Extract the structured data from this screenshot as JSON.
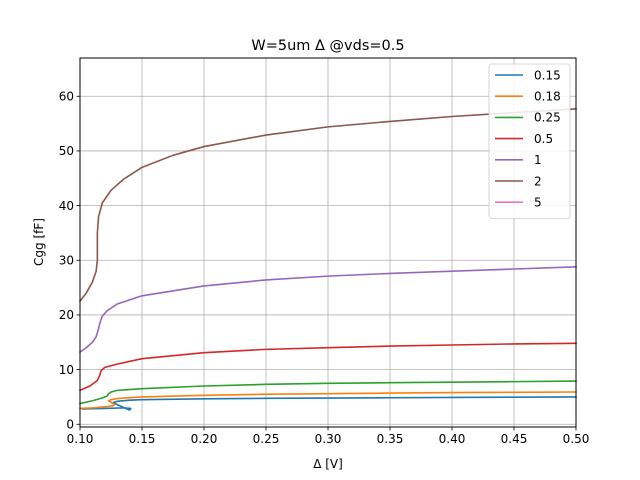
{
  "chart_data": {
    "type": "line",
    "title": "W=5um Δ @vds=0.5",
    "xlabel": "Δ [V]",
    "ylabel": "Cgg [fF]",
    "xlim": [
      0.1,
      0.5
    ],
    "ylim": [
      -0.5,
      67
    ],
    "x_ticks": [
      0.1,
      0.15,
      0.2,
      0.25,
      0.3,
      0.35,
      0.4,
      0.45,
      0.5
    ],
    "x_tick_labels": [
      "0.10",
      "0.15",
      "0.20",
      "0.25",
      "0.30",
      "0.35",
      "0.40",
      "0.45",
      "0.50"
    ],
    "y_ticks": [
      0,
      10,
      20,
      30,
      40,
      50,
      60
    ],
    "y_tick_labels": [
      "0",
      "10",
      "20",
      "30",
      "40",
      "50",
      "60"
    ],
    "grid": true,
    "legend_position": "top-right",
    "series": [
      {
        "name": "0.15",
        "color": "#1f77b4",
        "x": [
          0.102,
          0.12,
          0.135,
          0.141,
          0.14,
          0.13,
          0.127,
          0.13,
          0.14,
          0.15,
          0.2,
          0.25,
          0.3,
          0.35,
          0.4,
          0.45,
          0.5
        ],
        "y": [
          2.8,
          2.9,
          3.0,
          2.9,
          2.6,
          3.6,
          4.0,
          4.2,
          4.4,
          4.5,
          4.65,
          4.75,
          4.8,
          4.85,
          4.9,
          4.95,
          5.0
        ]
      },
      {
        "name": "0.18",
        "color": "#ff7f0e",
        "x": [
          0.1,
          0.11,
          0.12,
          0.127,
          0.128,
          0.123,
          0.125,
          0.13,
          0.15,
          0.2,
          0.25,
          0.3,
          0.35,
          0.4,
          0.45,
          0.5
        ],
        "y": [
          2.9,
          3.0,
          3.2,
          3.4,
          3.6,
          4.3,
          4.5,
          4.7,
          5.0,
          5.3,
          5.5,
          5.6,
          5.7,
          5.8,
          5.85,
          5.9
        ]
      },
      {
        "name": "0.25",
        "color": "#2ca02c",
        "x": [
          0.1,
          0.11,
          0.118,
          0.122,
          0.123,
          0.125,
          0.13,
          0.15,
          0.2,
          0.25,
          0.3,
          0.35,
          0.4,
          0.45,
          0.5
        ],
        "y": [
          3.8,
          4.3,
          4.8,
          5.2,
          5.6,
          5.9,
          6.2,
          6.5,
          7.0,
          7.3,
          7.5,
          7.6,
          7.7,
          7.8,
          7.9
        ]
      },
      {
        "name": "0.5",
        "color": "#d62728",
        "x": [
          0.1,
          0.108,
          0.114,
          0.116,
          0.117,
          0.12,
          0.13,
          0.15,
          0.2,
          0.25,
          0.3,
          0.35,
          0.4,
          0.45,
          0.5
        ],
        "y": [
          6.2,
          7.0,
          8.0,
          9.0,
          9.8,
          10.4,
          11.0,
          12.0,
          13.1,
          13.7,
          14.0,
          14.3,
          14.5,
          14.7,
          14.8
        ]
      },
      {
        "name": "1",
        "color": "#9467bd",
        "x": [
          0.1,
          0.105,
          0.11,
          0.113,
          0.115,
          0.116,
          0.118,
          0.122,
          0.13,
          0.15,
          0.2,
          0.25,
          0.3,
          0.35,
          0.4,
          0.45,
          0.5
        ],
        "y": [
          13.2,
          14.0,
          15.0,
          16.0,
          17.5,
          18.5,
          19.8,
          20.8,
          22.0,
          23.5,
          25.3,
          26.4,
          27.1,
          27.6,
          28.0,
          28.4,
          28.8
        ]
      },
      {
        "name": "2",
        "color": "#8c564b",
        "x": [
          0.1,
          0.105,
          0.11,
          0.113,
          0.114,
          0.114,
          0.115,
          0.118,
          0.125,
          0.135,
          0.15,
          0.175,
          0.2,
          0.25,
          0.3,
          0.35,
          0.4,
          0.45,
          0.5
        ],
        "y": [
          22.5,
          24.0,
          26.0,
          28.0,
          30.0,
          35.0,
          38.0,
          40.5,
          42.8,
          44.8,
          47.0,
          49.2,
          50.8,
          52.9,
          54.4,
          55.4,
          56.3,
          57.0,
          57.7
        ]
      },
      {
        "name": "5",
        "color": "#e377c2",
        "x": [],
        "y": []
      }
    ]
  }
}
